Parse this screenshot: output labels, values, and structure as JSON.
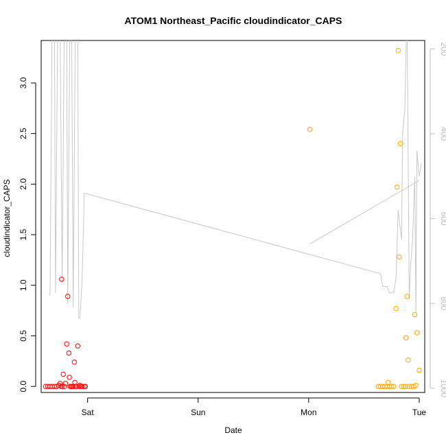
{
  "chart_data": {
    "type": "scatter",
    "title": "ATOM1 Northeast_Pacific cloudindicator_CAPS",
    "xlabel": "Date",
    "ylabel": "cloudindicator_CAPS",
    "xlim": [
      -0.42,
      3.05
    ],
    "ylim": [
      -0.06,
      3.42
    ],
    "x_ticks": [
      {
        "value": 0,
        "label": "Sat"
      },
      {
        "value": 1,
        "label": "Sun"
      },
      {
        "value": 2,
        "label": "Mon"
      },
      {
        "value": 3,
        "label": "Tue"
      }
    ],
    "y_ticks": [
      {
        "value": 0.0,
        "label": "0.0"
      },
      {
        "value": 0.5,
        "label": "0.5"
      },
      {
        "value": 1.0,
        "label": "1.0"
      },
      {
        "value": 1.5,
        "label": "1.5"
      },
      {
        "value": 2.0,
        "label": "2.0"
      },
      {
        "value": 2.5,
        "label": "2.5"
      },
      {
        "value": 3.0,
        "label": "3.0"
      }
    ],
    "y2lim_reversed": [
      1010,
      180
    ],
    "y2_ticks": [
      {
        "value": 200,
        "label": "200"
      },
      {
        "value": 400,
        "label": "400"
      },
      {
        "value": 600,
        "label": "600"
      },
      {
        "value": 800,
        "label": "800"
      },
      {
        "value": 1000,
        "label": "1000"
      }
    ],
    "grid": false,
    "colors": {
      "series_red": "#ff0000",
      "series_orange": "#ffa500",
      "pressure_line": "#c8c8c8"
    },
    "series": [
      {
        "color": "#ff0000",
        "points": [
          {
            "x": -0.38,
            "y": 0.0
          },
          {
            "x": -0.36,
            "y": 0.0
          },
          {
            "x": -0.34,
            "y": 0.0
          },
          {
            "x": -0.32,
            "y": 0.0
          },
          {
            "x": -0.3,
            "y": 0.0
          },
          {
            "x": -0.28,
            "y": 0.0
          },
          {
            "x": -0.26,
            "y": 0.01
          },
          {
            "x": -0.25,
            "y": 0.03
          },
          {
            "x": -0.24,
            "y": 0.0
          },
          {
            "x": -0.23,
            "y": 0.0
          },
          {
            "x": -0.235,
            "y": 1.06
          },
          {
            "x": -0.22,
            "y": 0.12
          },
          {
            "x": -0.21,
            "y": 0.0
          },
          {
            "x": -0.2,
            "y": 0.03
          },
          {
            "x": -0.19,
            "y": 0.42
          },
          {
            "x": -0.18,
            "y": 0.89
          },
          {
            "x": -0.17,
            "y": 0.33
          },
          {
            "x": -0.165,
            "y": 0.09
          },
          {
            "x": -0.16,
            "y": 0.0
          },
          {
            "x": -0.15,
            "y": 0.0
          },
          {
            "x": -0.14,
            "y": 0.0
          },
          {
            "x": -0.13,
            "y": 0.0
          },
          {
            "x": -0.12,
            "y": 0.24
          },
          {
            "x": -0.115,
            "y": 0.04
          },
          {
            "x": -0.11,
            "y": 0.0
          },
          {
            "x": -0.1,
            "y": 0.0
          },
          {
            "x": -0.09,
            "y": 0.4
          },
          {
            "x": -0.08,
            "y": 0.0
          },
          {
            "x": -0.07,
            "y": 0.01
          },
          {
            "x": -0.06,
            "y": 0.0
          },
          {
            "x": -0.05,
            "y": 0.0
          },
          {
            "x": -0.03,
            "y": 0.0
          },
          {
            "x": -0.02,
            "y": 0.0
          }
        ]
      },
      {
        "color": "#ffa500",
        "points": [
          {
            "x": 2.01,
            "y": 2.54
          },
          {
            "x": 2.63,
            "y": 0.0
          },
          {
            "x": 2.65,
            "y": 0.0
          },
          {
            "x": 2.67,
            "y": 0.0
          },
          {
            "x": 2.69,
            "y": 0.0
          },
          {
            "x": 2.71,
            "y": 0.0
          },
          {
            "x": 2.72,
            "y": 0.04
          },
          {
            "x": 2.73,
            "y": 0.0
          },
          {
            "x": 2.75,
            "y": 0.0
          },
          {
            "x": 2.77,
            "y": 0.0
          },
          {
            "x": 2.79,
            "y": 0.77
          },
          {
            "x": 2.8,
            "y": 1.97
          },
          {
            "x": 2.81,
            "y": 3.32
          },
          {
            "x": 2.82,
            "y": 1.28
          },
          {
            "x": 2.83,
            "y": 2.4
          },
          {
            "x": 2.84,
            "y": 0.0
          },
          {
            "x": 2.86,
            "y": 0.0
          },
          {
            "x": 2.875,
            "y": 0.0
          },
          {
            "x": 2.88,
            "y": 0.48
          },
          {
            "x": 2.89,
            "y": 0.89
          },
          {
            "x": 2.9,
            "y": 0.26
          },
          {
            "x": 2.91,
            "y": 0.0
          },
          {
            "x": 2.93,
            "y": 0.0
          },
          {
            "x": 2.95,
            "y": 0.0
          },
          {
            "x": 2.96,
            "y": 0.71
          },
          {
            "x": 2.97,
            "y": 0.01
          },
          {
            "x": 2.98,
            "y": 0.53
          },
          {
            "x": 3.0,
            "y": 0.16
          }
        ]
      }
    ],
    "pressure_line": [
      {
        "x": -0.35,
        "y2": 780
      },
      {
        "x": -0.34,
        "y2": 780
      },
      {
        "x": -0.32,
        "y2": 120
      },
      {
        "x": -0.3,
        "y2": 120
      },
      {
        "x": -0.29,
        "y2": 775
      },
      {
        "x": -0.27,
        "y2": 120
      },
      {
        "x": -0.25,
        "y2": 120
      },
      {
        "x": -0.23,
        "y2": 750
      },
      {
        "x": -0.21,
        "y2": 120
      },
      {
        "x": -0.19,
        "y2": 120
      },
      {
        "x": -0.18,
        "y2": 800
      },
      {
        "x": -0.16,
        "y2": 120
      },
      {
        "x": -0.145,
        "y2": 120
      },
      {
        "x": -0.13,
        "y2": 810
      },
      {
        "x": -0.11,
        "y2": 120
      },
      {
        "x": -0.09,
        "y2": 120
      },
      {
        "x": -0.08,
        "y2": 835
      },
      {
        "x": -0.07,
        "y2": 835
      },
      {
        "x": -0.05,
        "y2": 750
      },
      {
        "x": -0.03,
        "y2": 540
      },
      {
        "x": 2.65,
        "y2": 730
      },
      {
        "x": 2.67,
        "y2": 760
      },
      {
        "x": 2.71,
        "y2": 760
      },
      {
        "x": 2.73,
        "y2": 775
      },
      {
        "x": 2.77,
        "y2": 775
      },
      {
        "x": 2.79,
        "y2": 740
      },
      {
        "x": 2.81,
        "y2": 580
      },
      {
        "x": 2.84,
        "y2": 650
      },
      {
        "x": 2.85,
        "y2": 400
      },
      {
        "x": 2.87,
        "y2": 340
      },
      {
        "x": 2.89,
        "y2": 100
      },
      {
        "x": 2.91,
        "y2": 790
      },
      {
        "x": 2.92,
        "y2": 720
      },
      {
        "x": 2.94,
        "y2": 650
      },
      {
        "x": 2.96,
        "y2": 500
      },
      {
        "x": 2.97,
        "y2": 820
      },
      {
        "x": 2.98,
        "y2": 440
      },
      {
        "x": 3.0,
        "y2": 500
      },
      {
        "x": 3.02,
        "y2": 470
      }
    ],
    "pressure_line_mon": [
      {
        "x": 2.01,
        "y2": 660
      },
      {
        "x": 3.0,
        "y2": 510
      }
    ]
  }
}
